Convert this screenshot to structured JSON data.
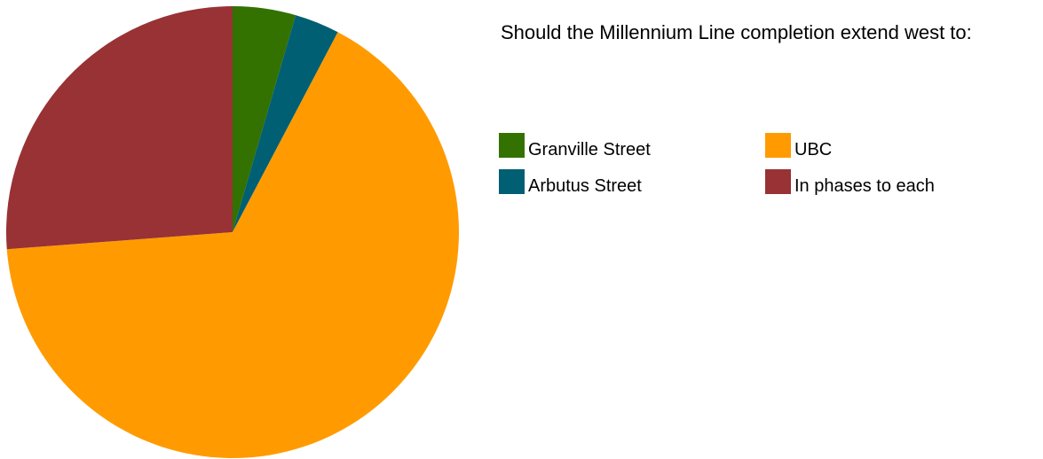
{
  "chart_data": {
    "type": "pie",
    "title": "Should the Millennium Line completion extend west to:",
    "slices": [
      {
        "label": "Granville Street",
        "value": 4.5,
        "color": "#337200"
      },
      {
        "label": "Arbutus Street",
        "value": 3.2,
        "color": "#005F73"
      },
      {
        "label": "UBC",
        "value": 66.1,
        "color": "#FF9B00"
      },
      {
        "label": "In phases to each",
        "value": 26.2,
        "color": "#983235"
      }
    ],
    "legend_order": [
      0,
      2,
      1,
      3
    ],
    "legend_placement": "right",
    "start_angle": "top",
    "direction": "clockwise"
  }
}
